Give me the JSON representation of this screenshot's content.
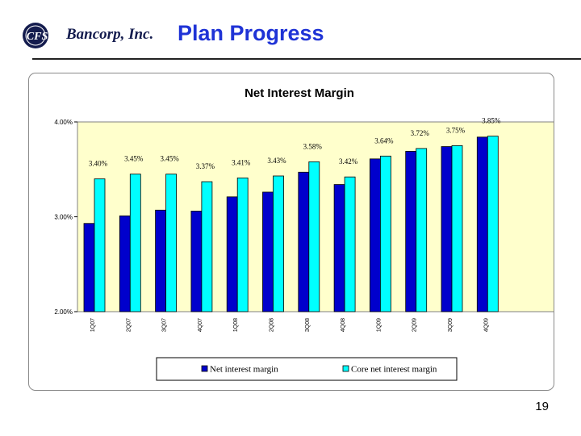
{
  "header": {
    "logo_badge": "CFS",
    "logo_text": "Bancorp, Inc.",
    "title": "Plan Progress"
  },
  "colors": {
    "title": "#1f33d6",
    "plot_background": "#ffffcc",
    "net_interest_margin": "#0000cc",
    "core_net_interest_margin": "#00ffff"
  },
  "chart_data": {
    "type": "bar",
    "title": "Net Interest Margin",
    "xlabel": "",
    "ylabel": "",
    "ylim": [
      2.0,
      4.0
    ],
    "yticks": [
      "2.00%",
      "3.00%",
      "4.00%"
    ],
    "categories": [
      "1Q07",
      "2Q07",
      "3Q07",
      "4Q07",
      "1Q08",
      "2Q08",
      "3Q08",
      "4Q08",
      "1Q09",
      "2Q09",
      "3Q09",
      "4Q09"
    ],
    "series": [
      {
        "name": "Net interest margin",
        "values": [
          2.93,
          3.01,
          3.07,
          3.06,
          3.21,
          3.26,
          3.47,
          3.34,
          3.61,
          3.69,
          3.74,
          3.84
        ],
        "labels": null
      },
      {
        "name": "Core net interest margin",
        "values": [
          3.4,
          3.45,
          3.45,
          3.37,
          3.41,
          3.43,
          3.58,
          3.42,
          3.64,
          3.72,
          3.75,
          3.85
        ],
        "labels": [
          "3.40%",
          "3.45%",
          "3.45%",
          "3.37%",
          "3.41%",
          "3.43%",
          "3.58%",
          "3.42%",
          "3.64%",
          "3.72%",
          "3.75%",
          "3.85%"
        ]
      }
    ],
    "legend": "bottom",
    "grid": false
  },
  "footer": {
    "slide_number": "19"
  }
}
